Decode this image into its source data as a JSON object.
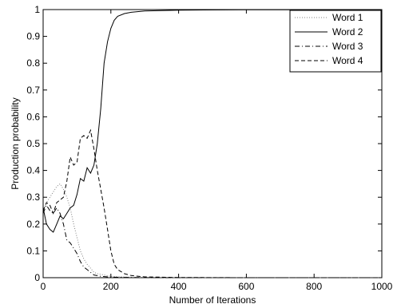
{
  "chart_data": {
    "type": "line",
    "title": "",
    "xlabel": "Number of Iterations",
    "ylabel": "Production probability",
    "xlim": [
      0,
      1000
    ],
    "ylim": [
      0,
      1
    ],
    "xticks": [
      0,
      200,
      400,
      600,
      800,
      1000
    ],
    "xtick_labels": [
      "0",
      "200",
      "400",
      "600",
      "800",
      "1000"
    ],
    "yticks": [
      0,
      0.1,
      0.2,
      0.3,
      0.4,
      0.5,
      0.6,
      0.7,
      0.8,
      0.9,
      1
    ],
    "ytick_labels": [
      "0",
      "0.1",
      "0.2",
      "0.3",
      "0.4",
      "0.5",
      "0.6",
      "0.7",
      "0.8",
      "0.9",
      "1"
    ],
    "grid": false,
    "legend_position": "top-right",
    "series": [
      {
        "name": "Word 1",
        "style": "dotted",
        "color": "#808080",
        "x": [
          0,
          10,
          20,
          30,
          40,
          50,
          60,
          70,
          80,
          90,
          100,
          110,
          120,
          130,
          140,
          150,
          160,
          180,
          200,
          250,
          300,
          400,
          600,
          800,
          1000
        ],
        "y": [
          0.25,
          0.28,
          0.3,
          0.32,
          0.34,
          0.35,
          0.33,
          0.3,
          0.26,
          0.2,
          0.15,
          0.1,
          0.07,
          0.05,
          0.035,
          0.02,
          0.015,
          0.01,
          0.005,
          0.002,
          0.001,
          0,
          0,
          0,
          0
        ]
      },
      {
        "name": "Word 2",
        "style": "solid",
        "color": "#000000",
        "x": [
          0,
          10,
          20,
          30,
          40,
          50,
          60,
          70,
          80,
          90,
          100,
          110,
          120,
          130,
          140,
          150,
          160,
          170,
          180,
          190,
          200,
          210,
          220,
          240,
          260,
          300,
          400,
          600,
          800,
          1000
        ],
        "y": [
          0.26,
          0.2,
          0.18,
          0.17,
          0.2,
          0.23,
          0.22,
          0.24,
          0.26,
          0.27,
          0.31,
          0.37,
          0.36,
          0.41,
          0.39,
          0.42,
          0.5,
          0.63,
          0.8,
          0.88,
          0.93,
          0.96,
          0.975,
          0.985,
          0.99,
          0.995,
          0.998,
          0.999,
          0.999,
          0.999
        ]
      },
      {
        "name": "Word 3",
        "style": "dashdot",
        "color": "#000000",
        "x": [
          0,
          10,
          20,
          30,
          40,
          50,
          60,
          70,
          80,
          90,
          100,
          110,
          120,
          130,
          140,
          150,
          170,
          200,
          300,
          400,
          600,
          800,
          1000
        ],
        "y": [
          0.24,
          0.27,
          0.25,
          0.24,
          0.26,
          0.24,
          0.2,
          0.14,
          0.13,
          0.11,
          0.09,
          0.06,
          0.04,
          0.03,
          0.02,
          0.01,
          0.005,
          0.002,
          0,
          0,
          0,
          0,
          0
        ]
      },
      {
        "name": "Word 4",
        "style": "dashed",
        "color": "#000000",
        "x": [
          0,
          10,
          20,
          30,
          40,
          50,
          60,
          70,
          80,
          90,
          100,
          110,
          120,
          130,
          140,
          150,
          160,
          170,
          180,
          190,
          200,
          210,
          220,
          240,
          260,
          300,
          400,
          600,
          800,
          1000
        ],
        "y": [
          0.25,
          0.28,
          0.27,
          0.24,
          0.28,
          0.29,
          0.3,
          0.36,
          0.45,
          0.42,
          0.43,
          0.52,
          0.53,
          0.52,
          0.55,
          0.48,
          0.4,
          0.33,
          0.26,
          0.18,
          0.1,
          0.05,
          0.03,
          0.015,
          0.008,
          0.003,
          0.001,
          0,
          0,
          0
        ]
      }
    ]
  }
}
